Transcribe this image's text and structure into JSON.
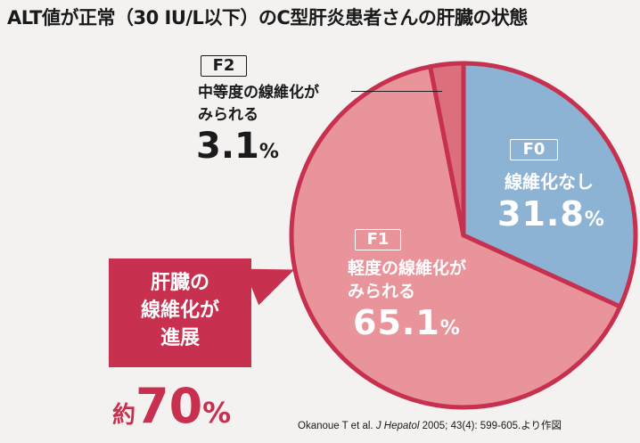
{
  "title": "ALT値が正常（30 IU/L以下）のC型肝炎患者さんの肝臓の状態",
  "chart_data": {
    "type": "pie",
    "slices": [
      {
        "tag": "F0",
        "label": "線維化なし",
        "value": 31.8,
        "value_text": "31.8",
        "color": "#8db3d4"
      },
      {
        "tag": "F1",
        "label": "軽度の線維化がみられる",
        "label_lines": [
          "軽度の線維化が",
          "みられる"
        ],
        "value": 65.1,
        "value_text": "65.1",
        "color": "#e8949a"
      },
      {
        "tag": "F2",
        "label": "中等度の線維化がみられる",
        "label_lines": [
          "中等度の線維化が",
          "みられる"
        ],
        "value": 3.1,
        "value_text": "3.1",
        "color": "#db6f7c"
      }
    ],
    "unit": "%"
  },
  "callout": {
    "lines": [
      "肝臓の",
      "線維化が",
      "進展"
    ],
    "prefix": "約",
    "value": "70",
    "unit": "%"
  },
  "citation": {
    "pre": "Okanoue T et al. ",
    "journal": "J Hepatol",
    "post": " 2005; 43(4): 599-605.より作図"
  },
  "colors": {
    "border": "#c8304f",
    "background": "#f4f2f1"
  }
}
